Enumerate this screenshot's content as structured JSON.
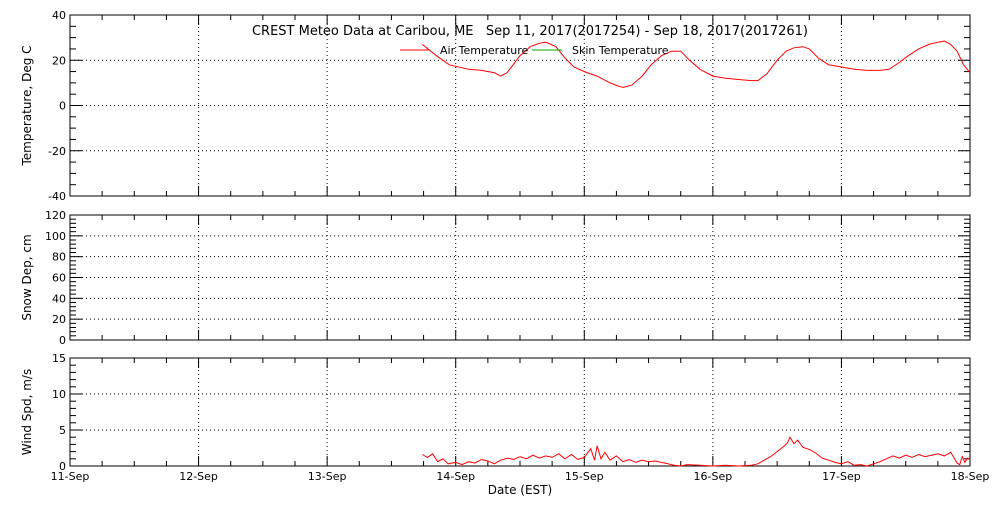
{
  "chart_data": {
    "title": "CREST Meteo Data at Caribou, ME   Sep 11, 2017(2017254) - Sep 18, 2017(2017261)",
    "xlabel": "Date (EST)",
    "x_ticks": [
      "11-Sep",
      "12-Sep",
      "13-Sep",
      "14-Sep",
      "15-Sep",
      "16-Sep",
      "17-Sep",
      "18-Sep"
    ],
    "x_range": [
      0,
      7
    ],
    "grid": true,
    "colors": {
      "air": "#ff0000",
      "skin": "#00aa00",
      "axis": "#000000"
    },
    "panels": [
      {
        "type": "line",
        "ylabel": "Temperature, Deg C",
        "ylim": [
          -40,
          40
        ],
        "y_ticks": [
          -40,
          -20,
          0,
          20,
          40
        ],
        "legend": [
          {
            "label": "Air Temperature",
            "color": "#ff0000"
          },
          {
            "label": "Skin Temperature",
            "color": "#00aa00"
          }
        ],
        "series": [
          {
            "name": "Air Temperature",
            "color": "#ff0000",
            "points": [
              [
                2.74,
                27
              ],
              [
                2.85,
                22
              ],
              [
                2.95,
                18
              ],
              [
                3.1,
                16
              ],
              [
                3.2,
                15.5
              ],
              [
                3.3,
                14.5
              ],
              [
                3.35,
                13
              ],
              [
                3.4,
                14.5
              ],
              [
                3.5,
                22
              ],
              [
                3.58,
                26
              ],
              [
                3.65,
                27.5
              ],
              [
                3.7,
                28
              ],
              [
                3.78,
                26
              ],
              [
                3.85,
                21
              ],
              [
                3.92,
                17
              ],
              [
                4.0,
                15
              ],
              [
                4.1,
                13
              ],
              [
                4.2,
                10
              ],
              [
                4.27,
                8.5
              ],
              [
                4.3,
                8
              ],
              [
                4.37,
                9
              ],
              [
                4.45,
                13
              ],
              [
                4.52,
                18
              ],
              [
                4.6,
                22
              ],
              [
                4.68,
                24
              ],
              [
                4.75,
                24
              ],
              [
                4.82,
                20
              ],
              [
                4.9,
                16
              ],
              [
                5.0,
                13
              ],
              [
                5.1,
                12
              ],
              [
                5.2,
                11.5
              ],
              [
                5.3,
                11
              ],
              [
                5.35,
                11
              ],
              [
                5.42,
                14
              ],
              [
                5.5,
                20
              ],
              [
                5.57,
                24
              ],
              [
                5.63,
                25.5
              ],
              [
                5.7,
                26
              ],
              [
                5.75,
                25
              ],
              [
                5.82,
                21
              ],
              [
                5.9,
                18
              ],
              [
                6.0,
                17
              ],
              [
                6.1,
                16
              ],
              [
                6.2,
                15.5
              ],
              [
                6.3,
                15.5
              ],
              [
                6.37,
                16
              ],
              [
                6.45,
                19
              ],
              [
                6.52,
                22
              ],
              [
                6.6,
                25
              ],
              [
                6.68,
                27
              ],
              [
                6.75,
                28
              ],
              [
                6.8,
                28.5
              ],
              [
                6.85,
                27
              ],
              [
                6.9,
                24
              ],
              [
                6.95,
                18
              ],
              [
                7.0,
                14.5
              ]
            ]
          },
          {
            "name": "Skin Temperature",
            "color": "#00aa00",
            "points": []
          }
        ]
      },
      {
        "type": "line",
        "ylabel": "Snow Dep, cm",
        "ylim": [
          0,
          120
        ],
        "y_ticks": [
          0,
          20,
          40,
          60,
          80,
          100,
          120
        ],
        "series": []
      },
      {
        "type": "line",
        "ylabel": "Wind Spd, m/s",
        "ylim": [
          0,
          15
        ],
        "y_ticks": [
          0,
          5,
          10,
          15
        ],
        "series": [
          {
            "name": "Wind Speed",
            "color": "#ff0000",
            "points": [
              [
                2.74,
                1.6
              ],
              [
                2.78,
                1.2
              ],
              [
                2.82,
                1.7
              ],
              [
                2.86,
                0.6
              ],
              [
                2.9,
                1.0
              ],
              [
                2.94,
                0.3
              ],
              [
                3.0,
                0.5
              ],
              [
                3.05,
                0.2
              ],
              [
                3.1,
                0.6
              ],
              [
                3.15,
                0.4
              ],
              [
                3.2,
                0.9
              ],
              [
                3.25,
                0.7
              ],
              [
                3.3,
                0.3
              ],
              [
                3.35,
                0.8
              ],
              [
                3.4,
                1.1
              ],
              [
                3.45,
                0.9
              ],
              [
                3.5,
                1.3
              ],
              [
                3.55,
                1.0
              ],
              [
                3.6,
                1.5
              ],
              [
                3.65,
                1.1
              ],
              [
                3.7,
                1.4
              ],
              [
                3.75,
                1.2
              ],
              [
                3.8,
                1.7
              ],
              [
                3.85,
                1.0
              ],
              [
                3.9,
                1.6
              ],
              [
                3.95,
                0.9
              ],
              [
                4.0,
                1.2
              ],
              [
                4.05,
                2.4
              ],
              [
                4.08,
                0.8
              ],
              [
                4.1,
                2.8
              ],
              [
                4.13,
                1.0
              ],
              [
                4.16,
                1.9
              ],
              [
                4.2,
                0.8
              ],
              [
                4.25,
                1.4
              ],
              [
                4.3,
                0.6
              ],
              [
                4.35,
                0.9
              ],
              [
                4.4,
                0.5
              ],
              [
                4.45,
                0.8
              ],
              [
                4.5,
                0.6
              ],
              [
                4.55,
                0.7
              ],
              [
                4.6,
                0.5
              ],
              [
                4.65,
                0.3
              ],
              [
                4.7,
                0.1
              ],
              [
                4.75,
                0.0
              ],
              [
                4.8,
                0.2
              ],
              [
                4.9,
                0.1
              ],
              [
                5.0,
                0.0
              ],
              [
                5.1,
                0.1
              ],
              [
                5.2,
                0.0
              ],
              [
                5.3,
                0.1
              ],
              [
                5.35,
                0.3
              ],
              [
                5.4,
                0.8
              ],
              [
                5.45,
                1.3
              ],
              [
                5.5,
                2.0
              ],
              [
                5.55,
                2.7
              ],
              [
                5.58,
                3.2
              ],
              [
                5.6,
                4.0
              ],
              [
                5.63,
                3.1
              ],
              [
                5.66,
                3.6
              ],
              [
                5.7,
                2.6
              ],
              [
                5.75,
                2.3
              ],
              [
                5.8,
                1.8
              ],
              [
                5.85,
                1.1
              ],
              [
                5.9,
                0.8
              ],
              [
                5.95,
                0.5
              ],
              [
                6.0,
                0.3
              ],
              [
                6.05,
                0.6
              ],
              [
                6.1,
                0.1
              ],
              [
                6.15,
                0.2
              ],
              [
                6.2,
                0.0
              ],
              [
                6.25,
                0.3
              ],
              [
                6.3,
                0.6
              ],
              [
                6.35,
                1.0
              ],
              [
                6.4,
                1.4
              ],
              [
                6.45,
                1.1
              ],
              [
                6.5,
                1.5
              ],
              [
                6.55,
                1.2
              ],
              [
                6.6,
                1.6
              ],
              [
                6.65,
                1.3
              ],
              [
                6.7,
                1.5
              ],
              [
                6.75,
                1.7
              ],
              [
                6.8,
                1.4
              ],
              [
                6.85,
                1.9
              ],
              [
                6.9,
                0.4
              ],
              [
                6.92,
                0.2
              ],
              [
                6.94,
                1.3
              ],
              [
                6.96,
                0.5
              ],
              [
                6.98,
                1.1
              ],
              [
                7.0,
                0.9
              ]
            ]
          }
        ]
      }
    ]
  }
}
